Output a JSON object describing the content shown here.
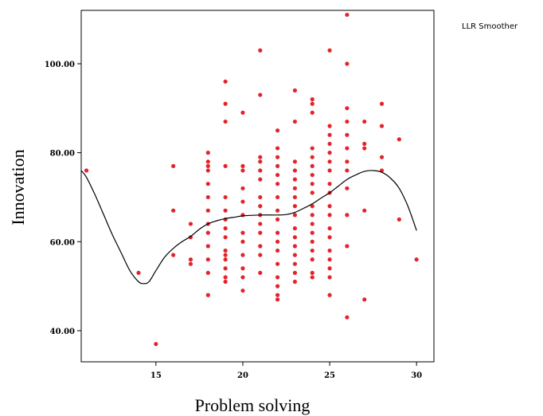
{
  "chart_data": {
    "type": "scatter",
    "xlabel": "Problem solving",
    "ylabel": "Innovation",
    "legend": {
      "label": "LLR Smoother",
      "placement": "top-right"
    },
    "xlim": [
      10.7,
      31
    ],
    "ylim": [
      33,
      112
    ],
    "xticks": [
      15,
      20,
      25,
      30
    ],
    "yticks": [
      40,
      60,
      80,
      100
    ],
    "xtick_labels": [
      "15",
      "20",
      "25",
      "30"
    ],
    "ytick_labels": [
      "40.00",
      "60.00",
      "80.00",
      "100.00"
    ],
    "grid": false,
    "point_color": "#e3242b",
    "line_color": "#000000",
    "points": [
      [
        11,
        76
      ],
      [
        14,
        53
      ],
      [
        15,
        37
      ],
      [
        16,
        77
      ],
      [
        16,
        67
      ],
      [
        16,
        57
      ],
      [
        17,
        64
      ],
      [
        17,
        61
      ],
      [
        17,
        56
      ],
      [
        17,
        55
      ],
      [
        18,
        80
      ],
      [
        18,
        78
      ],
      [
        18,
        77
      ],
      [
        18,
        76
      ],
      [
        18,
        73
      ],
      [
        18,
        70
      ],
      [
        18,
        67
      ],
      [
        18,
        64
      ],
      [
        18,
        62
      ],
      [
        18,
        59
      ],
      [
        18,
        56
      ],
      [
        18,
        53
      ],
      [
        18,
        48
      ],
      [
        19,
        96
      ],
      [
        19,
        91
      ],
      [
        19,
        87
      ],
      [
        19,
        77
      ],
      [
        19,
        70
      ],
      [
        19,
        67
      ],
      [
        19,
        65
      ],
      [
        19,
        63
      ],
      [
        19,
        61
      ],
      [
        19,
        58
      ],
      [
        19,
        57
      ],
      [
        19,
        56
      ],
      [
        19,
        54
      ],
      [
        19,
        52
      ],
      [
        19,
        51
      ],
      [
        20,
        89
      ],
      [
        20,
        77
      ],
      [
        20,
        76
      ],
      [
        20,
        72
      ],
      [
        20,
        69
      ],
      [
        20,
        66
      ],
      [
        20,
        62
      ],
      [
        20,
        60
      ],
      [
        20,
        57
      ],
      [
        20,
        54
      ],
      [
        20,
        52
      ],
      [
        20,
        49
      ],
      [
        21,
        103
      ],
      [
        21,
        93
      ],
      [
        21,
        79
      ],
      [
        21,
        78
      ],
      [
        21,
        76
      ],
      [
        21,
        74
      ],
      [
        21,
        70
      ],
      [
        21,
        68
      ],
      [
        21,
        66
      ],
      [
        21,
        64
      ],
      [
        21,
        62
      ],
      [
        21,
        59
      ],
      [
        21,
        57
      ],
      [
        21,
        53
      ],
      [
        22,
        85
      ],
      [
        22,
        81
      ],
      [
        22,
        79
      ],
      [
        22,
        77
      ],
      [
        22,
        75
      ],
      [
        22,
        73
      ],
      [
        22,
        70
      ],
      [
        22,
        67
      ],
      [
        22,
        65
      ],
      [
        22,
        62
      ],
      [
        22,
        60
      ],
      [
        22,
        58
      ],
      [
        22,
        55
      ],
      [
        22,
        52
      ],
      [
        22,
        50
      ],
      [
        22,
        48
      ],
      [
        22,
        47
      ],
      [
        23,
        94
      ],
      [
        23,
        87
      ],
      [
        23,
        78
      ],
      [
        23,
        76
      ],
      [
        23,
        74
      ],
      [
        23,
        72
      ],
      [
        23,
        70
      ],
      [
        23,
        68
      ],
      [
        23,
        66
      ],
      [
        23,
        63
      ],
      [
        23,
        61
      ],
      [
        23,
        59
      ],
      [
        23,
        57
      ],
      [
        23,
        55
      ],
      [
        23,
        53
      ],
      [
        23,
        51
      ],
      [
        24,
        92
      ],
      [
        24,
        91
      ],
      [
        24,
        89
      ],
      [
        24,
        81
      ],
      [
        24,
        79
      ],
      [
        24,
        77
      ],
      [
        24,
        75
      ],
      [
        24,
        73
      ],
      [
        24,
        71
      ],
      [
        24,
        68
      ],
      [
        24,
        66
      ],
      [
        24,
        64
      ],
      [
        24,
        62
      ],
      [
        24,
        60
      ],
      [
        24,
        58
      ],
      [
        24,
        56
      ],
      [
        24,
        53
      ],
      [
        24,
        52
      ],
      [
        25,
        103
      ],
      [
        25,
        86
      ],
      [
        25,
        84
      ],
      [
        25,
        82
      ],
      [
        25,
        80
      ],
      [
        25,
        78
      ],
      [
        25,
        76
      ],
      [
        25,
        73
      ],
      [
        25,
        71
      ],
      [
        25,
        68
      ],
      [
        25,
        66
      ],
      [
        25,
        63
      ],
      [
        25,
        61
      ],
      [
        25,
        58
      ],
      [
        25,
        56
      ],
      [
        25,
        54
      ],
      [
        25,
        52
      ],
      [
        25,
        48
      ],
      [
        26,
        111
      ],
      [
        26,
        100
      ],
      [
        26,
        90
      ],
      [
        26,
        87
      ],
      [
        26,
        84
      ],
      [
        26,
        81
      ],
      [
        26,
        78
      ],
      [
        26,
        76
      ],
      [
        26,
        72
      ],
      [
        26,
        66
      ],
      [
        26,
        59
      ],
      [
        26,
        43
      ],
      [
        27,
        87
      ],
      [
        27,
        82
      ],
      [
        27,
        81
      ],
      [
        27,
        67
      ],
      [
        27,
        47
      ],
      [
        28,
        91
      ],
      [
        28,
        86
      ],
      [
        28,
        79
      ],
      [
        28,
        76
      ],
      [
        29,
        83
      ],
      [
        29,
        65
      ],
      [
        30,
        56
      ]
    ],
    "smoother": [
      [
        10.7,
        76
      ],
      [
        11,
        74.5
      ],
      [
        11.5,
        70.5
      ],
      [
        12,
        66
      ],
      [
        12.5,
        61.5
      ],
      [
        13,
        57.5
      ],
      [
        13.5,
        53.5
      ],
      [
        14,
        51
      ],
      [
        14.3,
        50.6
      ],
      [
        14.6,
        51
      ],
      [
        15,
        53.5
      ],
      [
        15.5,
        56.5
      ],
      [
        16,
        58.5
      ],
      [
        16.5,
        60
      ],
      [
        17,
        61.2
      ],
      [
        17.5,
        62.8
      ],
      [
        18,
        64
      ],
      [
        18.5,
        64.7
      ],
      [
        19,
        65.2
      ],
      [
        19.5,
        65.5
      ],
      [
        20,
        65.8
      ],
      [
        21,
        66
      ],
      [
        22,
        66
      ],
      [
        22.5,
        66.1
      ],
      [
        23,
        66.6
      ],
      [
        23.5,
        67.5
      ],
      [
        24,
        68.5
      ],
      [
        24.5,
        69.8
      ],
      [
        25,
        71
      ],
      [
        25.5,
        72.5
      ],
      [
        26,
        74
      ],
      [
        26.5,
        75
      ],
      [
        27,
        75.8
      ],
      [
        27.5,
        76
      ],
      [
        28,
        75.6
      ],
      [
        28.5,
        74.3
      ],
      [
        29,
        72
      ],
      [
        29.5,
        68
      ],
      [
        30,
        62.5
      ]
    ]
  }
}
